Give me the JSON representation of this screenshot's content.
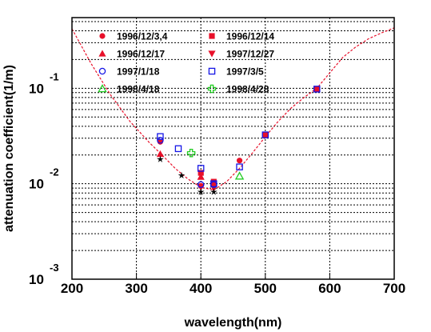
{
  "chart_data": {
    "type": "scatter",
    "xlabel": "wavelength(nm)",
    "ylabel": "attenuation coefficient(1/m)",
    "xlim": [
      200,
      700
    ],
    "ylim": [
      0.001,
      0.55
    ],
    "yscale": "log",
    "grid": true,
    "legend_position": "top",
    "x_ticks": [
      {
        "value": 200,
        "label": "200"
      },
      {
        "value": 300,
        "label": "300"
      },
      {
        "value": 400,
        "label": "400"
      },
      {
        "value": 500,
        "label": "500"
      },
      {
        "value": 600,
        "label": "600"
      },
      {
        "value": 700,
        "label": "700"
      }
    ],
    "y_ticks": [
      {
        "value": 0.1,
        "base": "10",
        "exp": "-1"
      },
      {
        "value": 0.01,
        "base": "10",
        "exp": "-2"
      },
      {
        "value": 0.001,
        "base": "10",
        "exp": "-3"
      }
    ],
    "series": [
      {
        "name": "1996/12/3,4",
        "marker": "circle",
        "filled": true,
        "color": "#e8102a",
        "points": [
          [
            337,
            0.0275
          ],
          [
            400,
            0.0095
          ],
          [
            420,
            0.01
          ],
          [
            460,
            0.0175
          ]
        ]
      },
      {
        "name": "1996/12/14",
        "marker": "square",
        "filled": true,
        "color": "#e8102a",
        "points": [
          [
            400,
            0.013
          ],
          [
            420,
            0.0105
          ],
          [
            500,
            0.0325
          ],
          [
            580,
            0.098
          ]
        ]
      },
      {
        "name": "1996/12/17",
        "marker": "triangle-up",
        "filled": true,
        "color": "#e8102a",
        "points": [
          [
            337,
            0.0205
          ],
          [
            400,
            0.0118
          ]
        ]
      },
      {
        "name": "1997/12/27",
        "marker": "triangle-down",
        "filled": true,
        "color": "#e8102a",
        "points": [
          [
            400,
            0.0092
          ],
          [
            420,
            0.009
          ]
        ]
      },
      {
        "name": "1997/1/18",
        "marker": "circle",
        "filled": false,
        "color": "#1515e6",
        "points": [
          [
            337,
            0.0285
          ],
          [
            400,
            0.0098
          ],
          [
            420,
            0.0098
          ]
        ]
      },
      {
        "name": "1997/3/5",
        "marker": "square",
        "filled": false,
        "color": "#1515e6",
        "points": [
          [
            337,
            0.0312
          ],
          [
            365,
            0.0233
          ],
          [
            400,
            0.0145
          ],
          [
            420,
            0.01
          ],
          [
            460,
            0.015
          ],
          [
            500,
            0.0325
          ],
          [
            580,
            0.098
          ]
        ]
      },
      {
        "name": "1998/4/18",
        "marker": "triangle-up",
        "filled": false,
        "color": "#22cc22",
        "points": [
          [
            460,
            0.012
          ]
        ]
      },
      {
        "name": "1998/4/28",
        "marker": "cross",
        "filled": false,
        "color": "#22cc22",
        "points": [
          [
            385,
            0.021
          ]
        ]
      },
      {
        "name": "",
        "marker": "star",
        "filled": true,
        "color": "#000000",
        "points": [
          [
            337,
            0.018
          ],
          [
            370,
            0.0122
          ],
          [
            400,
            0.0082
          ],
          [
            420,
            0.0082
          ]
        ]
      }
    ],
    "curve": {
      "color": "#e8102a",
      "points": [
        [
          200,
          0.42
        ],
        [
          230,
          0.18
        ],
        [
          260,
          0.085
        ],
        [
          290,
          0.045
        ],
        [
          320,
          0.027
        ],
        [
          340,
          0.02
        ],
        [
          360,
          0.0145
        ],
        [
          380,
          0.0112
        ],
        [
          400,
          0.0092
        ],
        [
          420,
          0.0086
        ],
        [
          440,
          0.0105
        ],
        [
          460,
          0.0145
        ],
        [
          480,
          0.021
        ],
        [
          500,
          0.031
        ],
        [
          520,
          0.045
        ],
        [
          540,
          0.062
        ],
        [
          560,
          0.08
        ],
        [
          580,
          0.1
        ],
        [
          600,
          0.145
        ],
        [
          620,
          0.21
        ],
        [
          640,
          0.27
        ],
        [
          660,
          0.33
        ],
        [
          680,
          0.38
        ],
        [
          700,
          0.43
        ]
      ]
    }
  }
}
